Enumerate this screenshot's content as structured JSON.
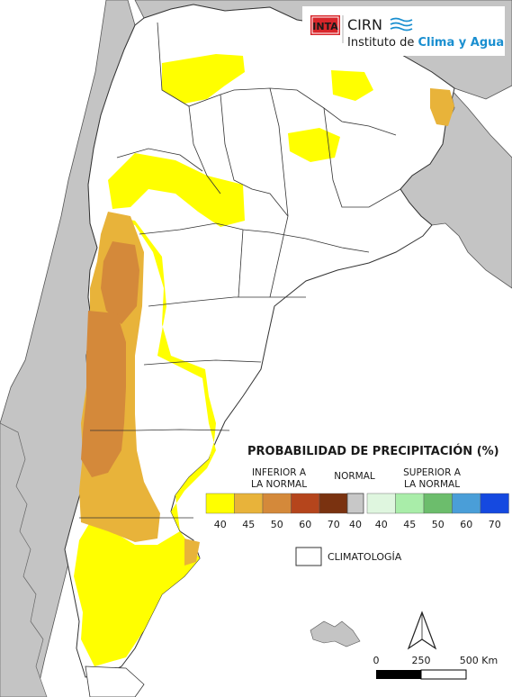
{
  "logo": {
    "badge": "INTA",
    "org": "CIRN",
    "institute_prefix": "Instituto de ",
    "institute_highlight": "Clima y Agua",
    "colors": {
      "badge": "#d8262b",
      "highlight": "#1a8fd0",
      "org": "#8a8f96"
    }
  },
  "legend": {
    "title": "PROBABILIDAD DE PRECIPITACIÓN (%)",
    "below": {
      "line1": "INFERIOR A",
      "line2": "LA NORMAL",
      "bins": [
        {
          "label": "40",
          "color": "#ffff00"
        },
        {
          "label": "45",
          "color": "#e8b33a"
        },
        {
          "label": "50",
          "color": "#d4893a"
        },
        {
          "label": "60",
          "color": "#b5451c"
        },
        {
          "label": "70",
          "color": "#7a3210"
        }
      ]
    },
    "normal": {
      "label": "NORMAL",
      "value": "40",
      "color": "#c8c8c8"
    },
    "above": {
      "line1": "SUPERIOR A",
      "line2": "LA NORMAL",
      "bins": [
        {
          "label": "40",
          "color": "#dff6df"
        },
        {
          "label": "45",
          "color": "#a9eda9"
        },
        {
          "label": "50",
          "color": "#6cbd6c"
        },
        {
          "label": "60",
          "color": "#4a9ed8"
        },
        {
          "label": "70",
          "color": "#1549e0"
        }
      ]
    },
    "climatology": "CLIMATOLOGÍA"
  },
  "scale": {
    "labels": [
      "0",
      "250",
      "500 Km"
    ]
  },
  "colors": {
    "land_outside": "#c4c4c4",
    "land": "#ffffff",
    "border": "#333333",
    "sea": "#ffffff"
  }
}
